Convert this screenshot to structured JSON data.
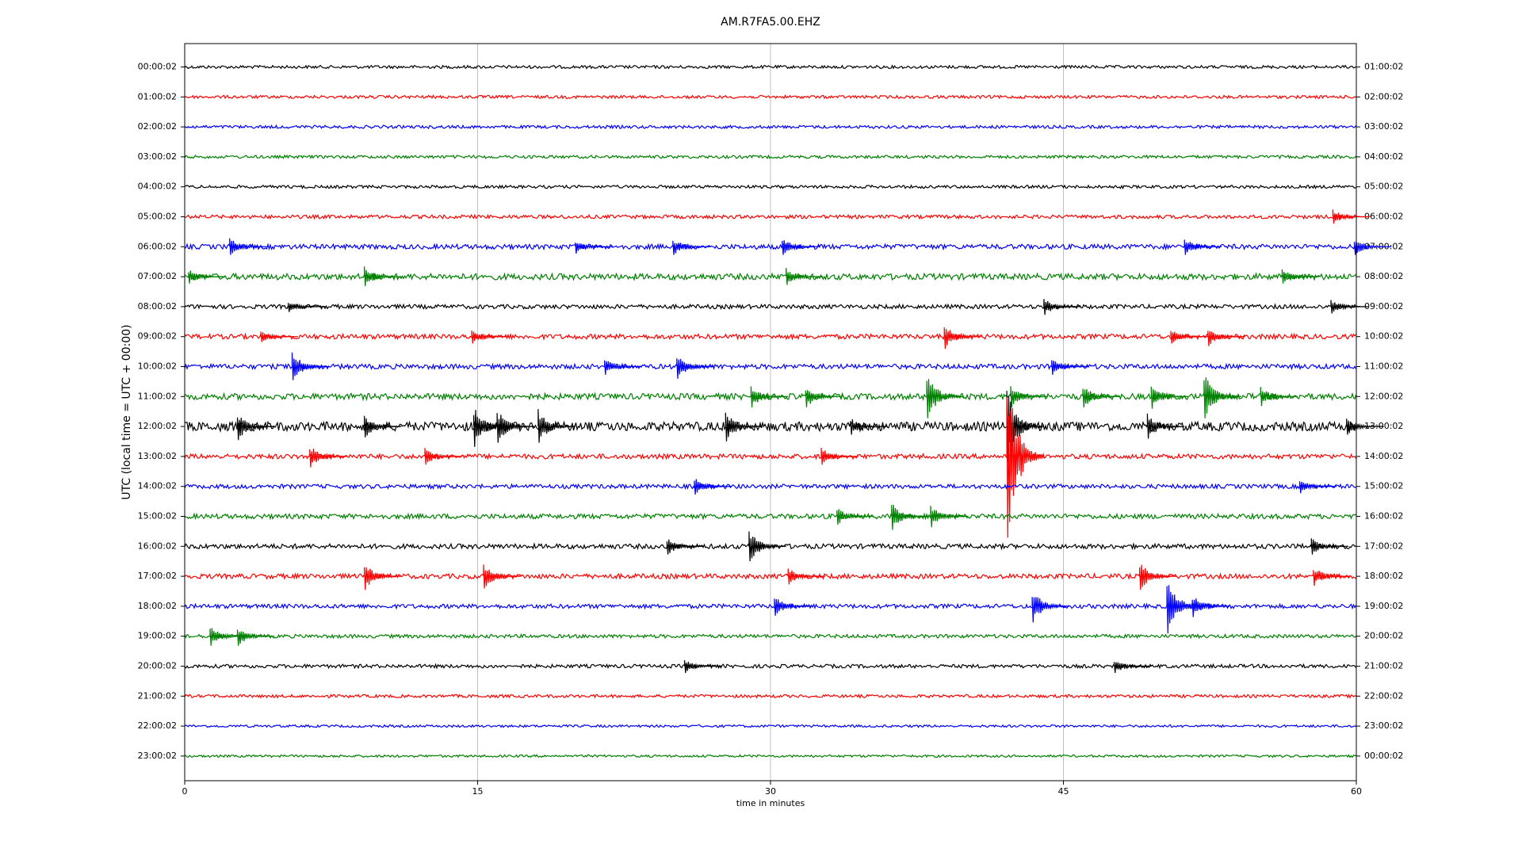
{
  "chart_data": {
    "type": "dayplot",
    "title": "AM.R7FA5.00.EHZ",
    "x_label": "time in minutes",
    "y_label": "UTC (local time = UTC + 00:00)",
    "xlim": [
      0,
      60
    ],
    "xticks": [
      0,
      15,
      30,
      45,
      60
    ],
    "grid": true,
    "series": [
      {
        "name": "00:00:02",
        "right_label": "01:00:02",
        "color": "#000000",
        "noise": 0.05,
        "events": []
      },
      {
        "name": "01:00:02",
        "right_label": "02:00:02",
        "color": "#ff0000",
        "noise": 0.05,
        "events": []
      },
      {
        "name": "02:00:02",
        "right_label": "03:00:02",
        "color": "#0000ff",
        "noise": 0.05,
        "events": []
      },
      {
        "name": "03:00:02",
        "right_label": "04:00:02",
        "color": "#008000",
        "noise": 0.05,
        "events": []
      },
      {
        "name": "04:00:02",
        "right_label": "05:00:02",
        "color": "#000000",
        "noise": 0.05,
        "events": []
      },
      {
        "name": "05:00:02",
        "right_label": "06:00:02",
        "color": "#ff0000",
        "noise": 0.06,
        "events": [
          [
            58.8,
            0.25
          ]
        ]
      },
      {
        "name": "06:00:02",
        "right_label": "07:00:02",
        "color": "#0000ff",
        "noise": 0.08,
        "events": [
          [
            2.3,
            0.3
          ],
          [
            20,
            0.25
          ],
          [
            25,
            0.3
          ],
          [
            30.6,
            0.3
          ],
          [
            51.2,
            0.3
          ],
          [
            59.9,
            0.3
          ]
        ]
      },
      {
        "name": "07:00:02",
        "right_label": "08:00:02",
        "color": "#008000",
        "noise": 0.1,
        "events": [
          [
            0.2,
            0.25
          ],
          [
            9.2,
            0.35
          ],
          [
            30.8,
            0.3
          ],
          [
            56.2,
            0.25
          ]
        ]
      },
      {
        "name": "08:00:02",
        "right_label": "09:00:02",
        "color": "#000000",
        "noise": 0.07,
        "events": [
          [
            5.3,
            0.2
          ],
          [
            44,
            0.3
          ],
          [
            58.7,
            0.25
          ]
        ]
      },
      {
        "name": "09:00:02",
        "right_label": "10:00:02",
        "color": "#ff0000",
        "noise": 0.08,
        "events": [
          [
            3.9,
            0.2
          ],
          [
            14.7,
            0.25
          ],
          [
            38.9,
            0.45
          ],
          [
            50.5,
            0.25
          ],
          [
            52.4,
            0.35
          ]
        ]
      },
      {
        "name": "10:00:02",
        "right_label": "11:00:02",
        "color": "#0000ff",
        "noise": 0.08,
        "events": [
          [
            5.5,
            0.5
          ],
          [
            21.5,
            0.3
          ],
          [
            25.2,
            0.45
          ],
          [
            44.4,
            0.3
          ]
        ]
      },
      {
        "name": "11:00:02",
        "right_label": "12:00:02",
        "color": "#008000",
        "noise": 0.1,
        "events": [
          [
            29,
            0.4
          ],
          [
            31.8,
            0.4
          ],
          [
            38,
            0.8
          ],
          [
            42.3,
            0.4
          ],
          [
            46,
            0.4
          ],
          [
            49.5,
            0.45
          ],
          [
            52.2,
            0.8
          ],
          [
            55.1,
            0.35
          ]
        ]
      },
      {
        "name": "12:00:02",
        "right_label": "13:00:02",
        "color": "#000000",
        "noise": 0.15,
        "events": [
          [
            2.7,
            0.5
          ],
          [
            9.2,
            0.4
          ],
          [
            14.8,
            0.75
          ],
          [
            16,
            0.6
          ],
          [
            18.1,
            0.6
          ],
          [
            27.7,
            0.55
          ],
          [
            34.1,
            0.3
          ],
          [
            42.1,
            1.3
          ],
          [
            49.3,
            0.45
          ],
          [
            59.5,
            0.3
          ]
        ]
      },
      {
        "name": "13:00:02",
        "right_label": "14:00:02",
        "color": "#ff0000",
        "noise": 0.08,
        "events": [
          [
            6.4,
            0.4
          ],
          [
            12.3,
            0.3
          ],
          [
            32.6,
            0.3
          ],
          [
            42.1,
            3
          ]
        ]
      },
      {
        "name": "14:00:02",
        "right_label": "15:00:02",
        "color": "#0000ff",
        "noise": 0.07,
        "events": [
          [
            26.1,
            0.3
          ],
          [
            57.1,
            0.25
          ]
        ]
      },
      {
        "name": "15:00:02",
        "right_label": "16:00:02",
        "color": "#008000",
        "noise": 0.08,
        "events": [
          [
            33.4,
            0.3
          ],
          [
            36.2,
            0.5
          ],
          [
            38.2,
            0.4
          ]
        ]
      },
      {
        "name": "16:00:02",
        "right_label": "17:00:02",
        "color": "#000000",
        "noise": 0.08,
        "events": [
          [
            24.7,
            0.3
          ],
          [
            28.9,
            0.55
          ],
          [
            57.7,
            0.3
          ]
        ]
      },
      {
        "name": "17:00:02",
        "right_label": "18:00:02",
        "color": "#ff0000",
        "noise": 0.08,
        "events": [
          [
            9.2,
            0.5
          ],
          [
            15.3,
            0.45
          ],
          [
            30.9,
            0.3
          ],
          [
            48.9,
            0.5
          ],
          [
            57.8,
            0.35
          ]
        ]
      },
      {
        "name": "18:00:02",
        "right_label": "19:00:02",
        "color": "#0000ff",
        "noise": 0.07,
        "events": [
          [
            30.2,
            0.35
          ],
          [
            43.4,
            0.6
          ],
          [
            50.3,
            1
          ],
          [
            51.6,
            0.4
          ]
        ]
      },
      {
        "name": "19:00:02",
        "right_label": "20:00:02",
        "color": "#008000",
        "noise": 0.06,
        "events": [
          [
            1.3,
            0.35
          ],
          [
            2.7,
            0.35
          ]
        ]
      },
      {
        "name": "20:00:02",
        "right_label": "21:00:02",
        "color": "#000000",
        "noise": 0.06,
        "events": [
          [
            25.6,
            0.25
          ],
          [
            47.6,
            0.25
          ]
        ]
      },
      {
        "name": "21:00:02",
        "right_label": "22:00:02",
        "color": "#ff0000",
        "noise": 0.05,
        "events": []
      },
      {
        "name": "22:00:02",
        "right_label": "23:00:02",
        "color": "#0000ff",
        "noise": 0.04,
        "events": []
      },
      {
        "name": "23:00:02",
        "right_label": "00:00:02",
        "color": "#008000",
        "noise": 0.04,
        "events": []
      }
    ]
  }
}
